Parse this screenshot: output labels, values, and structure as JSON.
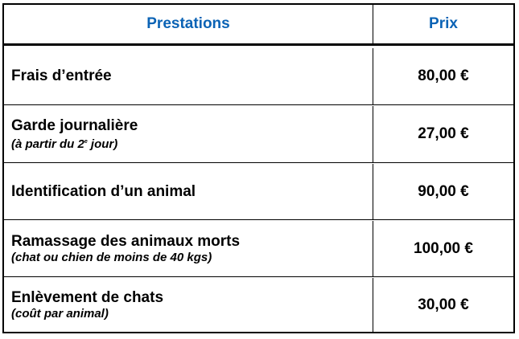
{
  "header": {
    "services_label": "Prestations",
    "price_label": "Prix"
  },
  "rows": [
    {
      "label": "Frais d’entrée",
      "note": "",
      "price": "80,00 €"
    },
    {
      "label": "Garde journalière",
      "note_before": "(à partir du 2",
      "note_sup": "e",
      "note_after": " jour)",
      "price": "27,00 €"
    },
    {
      "label": "Identification d’un animal",
      "note": "",
      "price": "90,00 €"
    },
    {
      "label": "Ramassage des animaux morts",
      "note": "(chat ou chien de moins de 40 kgs)",
      "price": "100,00 €"
    },
    {
      "label": "Enlèvement de chats",
      "note": "(coût par animal)",
      "price": "30,00 €"
    }
  ],
  "colors": {
    "header_text": "#0b63b5",
    "border": "#000000"
  }
}
